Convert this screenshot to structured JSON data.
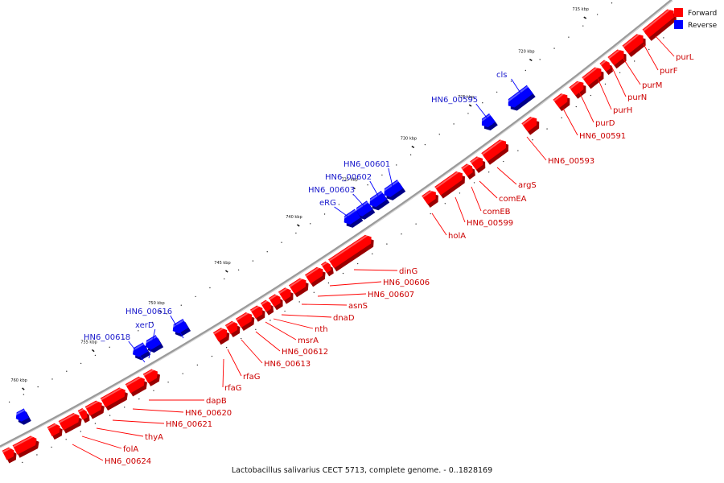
{
  "caption": "Lactobacillus salivarius CECT 5713, complete genome. - 0..1828169",
  "legend": [
    {
      "label": "Forward",
      "color": "#ff0000"
    },
    {
      "label": "Reverse",
      "color": "#0000ff"
    }
  ],
  "colors": {
    "forward": "#ff0000",
    "reverse": "#0000ff",
    "backbone": "#999999",
    "forward_label": "#cc0000",
    "reverse_label": "#1a1acc"
  },
  "ticks": [
    {
      "label": "715 kbp"
    },
    {
      "label": "720 kbp"
    },
    {
      "label": "725 kbp"
    },
    {
      "label": "730 kbp"
    },
    {
      "label": "735 kbp"
    },
    {
      "label": "740 kbp"
    },
    {
      "label": "745 kbp"
    },
    {
      "label": "750 kbp"
    },
    {
      "label": "755 kbp"
    },
    {
      "label": "760 kbp"
    }
  ],
  "forward_genes": [
    "purL",
    "purF",
    "purM",
    "purN",
    "purH",
    "purD",
    "HN6_00591",
    "HN6_00593",
    "argS",
    "comEA",
    "comEB",
    "HN6_00599",
    "holA",
    "dinG",
    "HN6_00606",
    "HN6_00607",
    "asnS",
    "dnaD",
    "nth",
    "msrA",
    "HN6_00612",
    "HN6_00613",
    "rfaG",
    "rfaG",
    "dapB",
    "HN6_00620",
    "HN6_00621",
    "thyA",
    "folA",
    "HN6_00624"
  ],
  "reverse_genes": [
    "cls",
    "HN6_00595",
    "HN6_00601",
    "HN6_00602",
    "HN6_00603",
    "eRG",
    "xerD",
    "HN6_00616",
    "HN6_00618"
  ]
}
